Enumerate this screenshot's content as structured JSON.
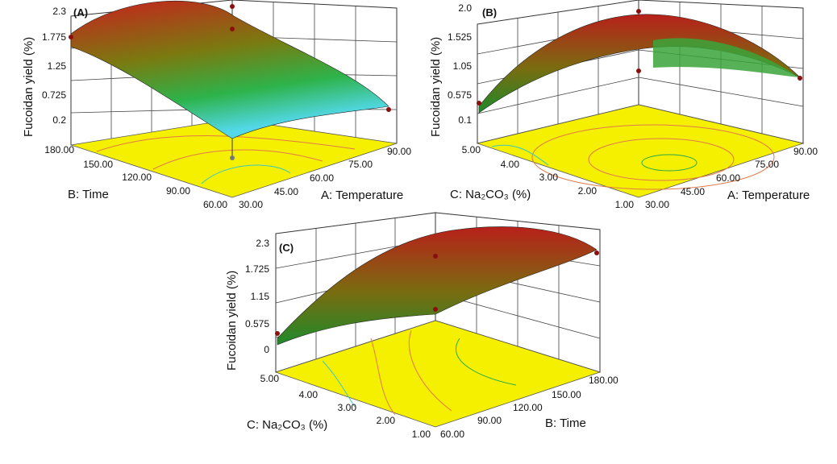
{
  "chart_data": [
    {
      "type": "surface3d",
      "panel_label": "(A)",
      "zlabel": "Fucoidan yield (%)",
      "z_ticks": [
        "2.3",
        "1.775",
        "1.25",
        "0.725",
        "0.2"
      ],
      "left_axis_label": "B: Time",
      "left_ticks": [
        "180.00",
        "150.00",
        "120.00",
        "90.00",
        "60.00"
      ],
      "right_axis_label": "A: Temperature",
      "right_ticks": [
        "30.00",
        "45.00",
        "60.00",
        "75.00",
        "90.00"
      ],
      "surface_colors": [
        "#c8201e",
        "#7a7a10",
        "#2db34a",
        "#52d8e8"
      ]
    },
    {
      "type": "surface3d",
      "panel_label": "(B)",
      "zlabel": "Fucoidan yield (%)",
      "z_ticks": [
        "2.0",
        "1.525",
        "1.05",
        "0.575",
        "0.1"
      ],
      "left_axis_label": "C:  Na₂CO₃ (%)",
      "left_ticks": [
        "5.00",
        "4.00",
        "3.00",
        "2.00",
        "1.00"
      ],
      "right_axis_label": "A: Temperature",
      "right_ticks": [
        "30.00",
        "45.00",
        "60.00",
        "75.00",
        "90.00"
      ],
      "surface_colors": [
        "#b8201a",
        "#7a6c10",
        "#1e8a2a"
      ]
    },
    {
      "type": "surface3d",
      "panel_label": "(C)",
      "zlabel": "Fucoidan yield (%)",
      "z_ticks": [
        "2.3",
        "1.725",
        "1.15",
        "0.575",
        "0"
      ],
      "left_axis_label": "C:   Na₂CO₃ (%)",
      "left_ticks": [
        "5.00",
        "4.00",
        "3.00",
        "2.00",
        "1.00"
      ],
      "right_axis_label": "B: Time",
      "right_ticks": [
        "60.00",
        "90.00",
        "120.00",
        "150.00",
        "180.00"
      ],
      "surface_colors": [
        "#b8201a",
        "#7a6c10",
        "#1e8a2a"
      ]
    }
  ]
}
